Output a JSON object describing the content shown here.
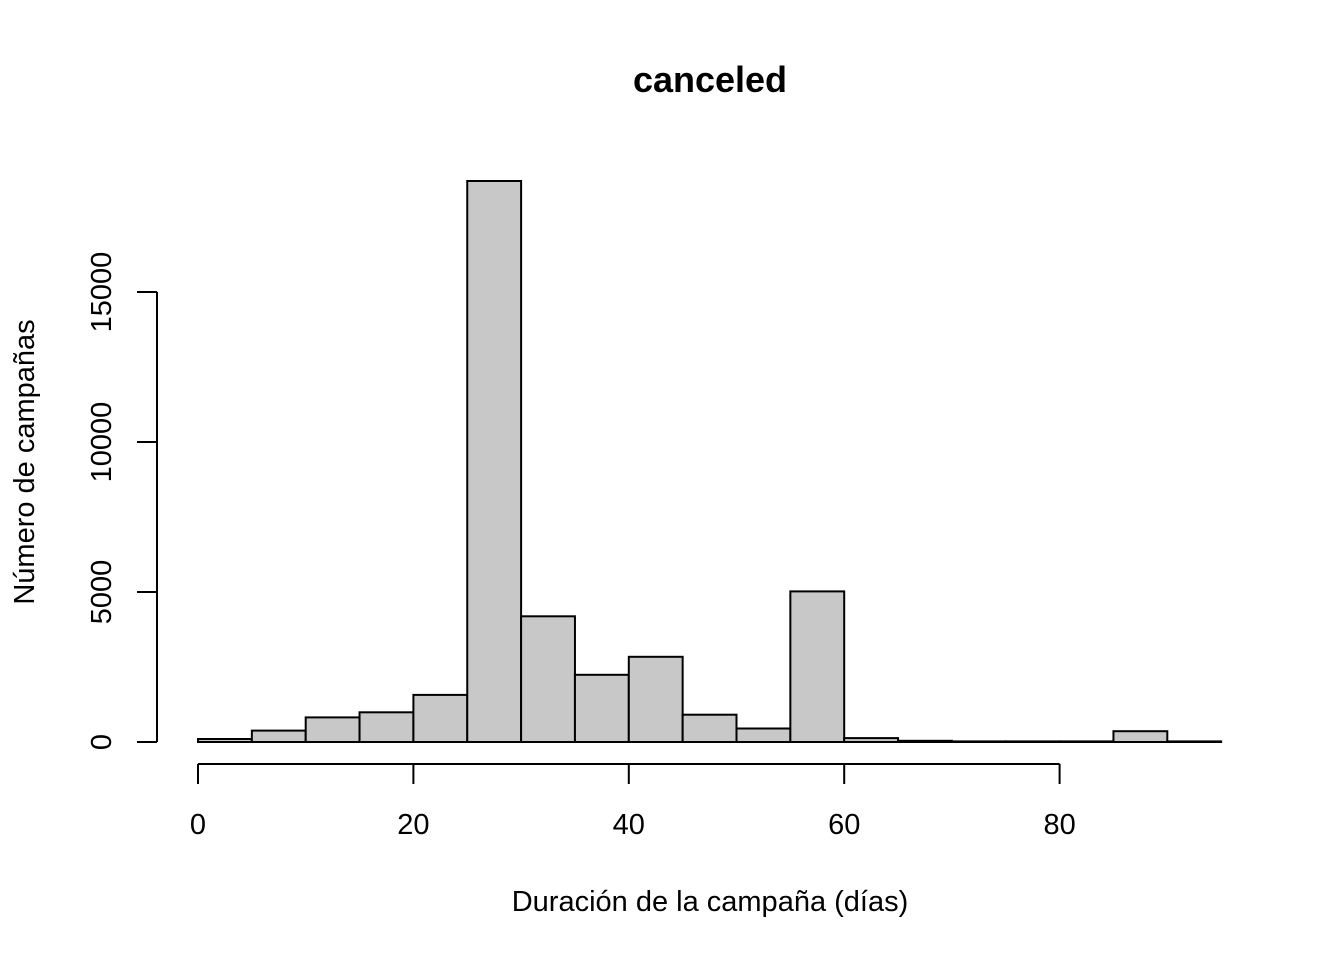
{
  "chart_data": {
    "type": "bar",
    "title": "canceled",
    "xlabel": "Duración de la campaña (días)",
    "ylabel": "Número de campañas",
    "bin_edges": [
      0,
      5,
      10,
      15,
      20,
      25,
      30,
      35,
      40,
      45,
      50,
      55,
      60,
      65,
      70,
      75,
      80,
      85,
      90,
      95
    ],
    "values": [
      100,
      380,
      820,
      990,
      1570,
      18700,
      4190,
      2240,
      2840,
      910,
      450,
      5020,
      130,
      40,
      20,
      20,
      20,
      360,
      20
    ],
    "xlim": [
      0,
      95
    ],
    "ylim": [
      0,
      18700
    ],
    "x_ticks": [
      0,
      20,
      40,
      60,
      80
    ],
    "y_ticks": [
      0,
      5000,
      10000,
      15000
    ],
    "x_tick_labels": [
      "0",
      "20",
      "40",
      "60",
      "80"
    ],
    "y_tick_labels": [
      "0",
      "5000",
      "10000",
      "15000"
    ],
    "grid": false,
    "bar_color": "#c8c8c8",
    "edge_color": "#000000"
  }
}
